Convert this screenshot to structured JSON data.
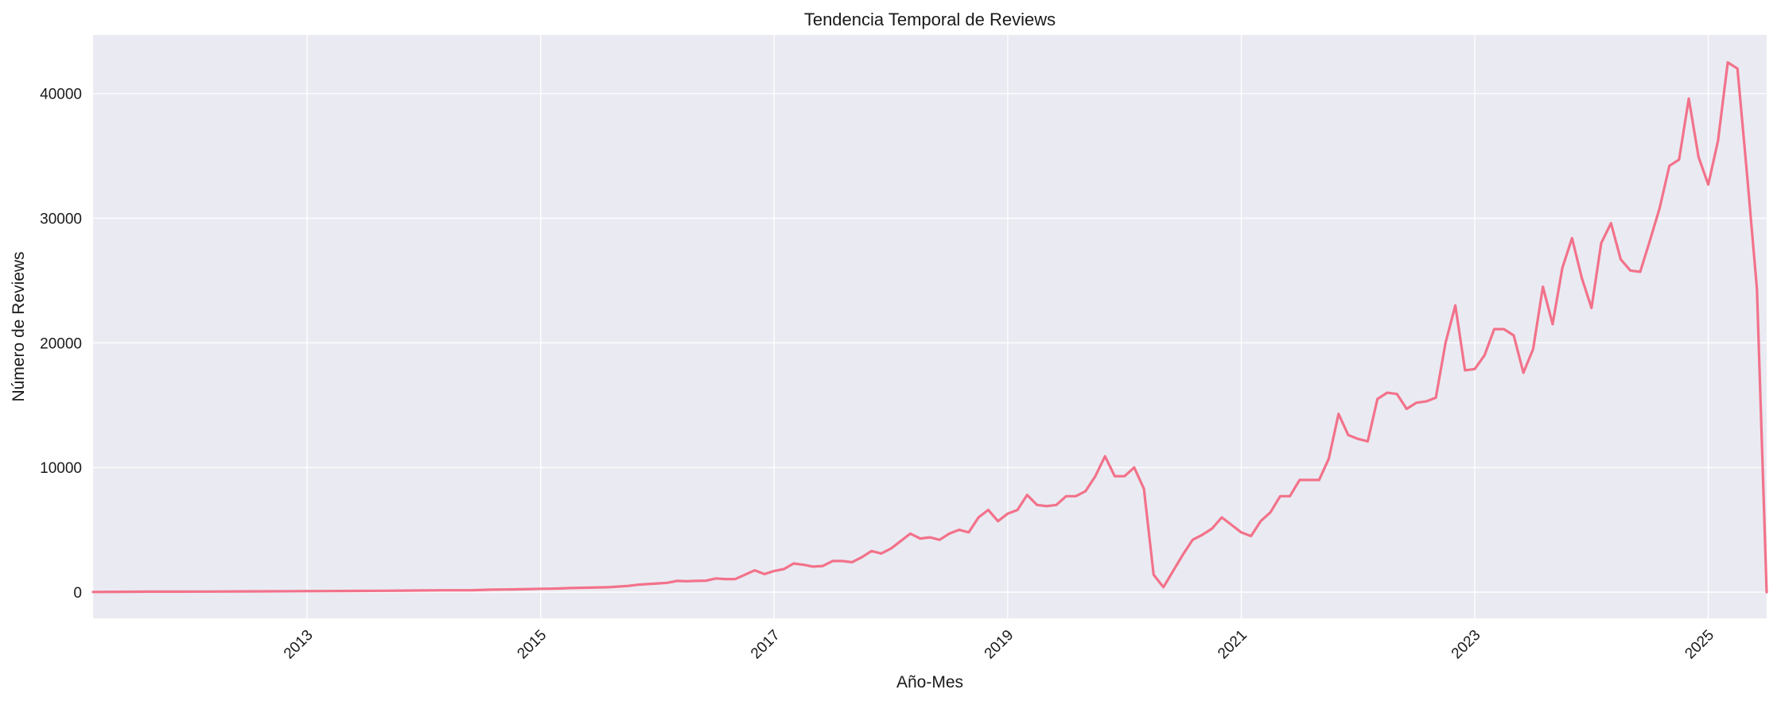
{
  "chart_data": {
    "type": "line",
    "title": "Tendencia Temporal de Reviews",
    "xlabel": "Año-Mes",
    "ylabel": "Número de Reviews",
    "x_range": [
      "2011-03",
      "2025-07"
    ],
    "ylim": [
      -2100,
      44700
    ],
    "grid": true,
    "line_color": "#f2728a",
    "background_color": "#eaeaf2",
    "x_ticks": [
      "2013",
      "2015",
      "2017",
      "2019",
      "2021",
      "2023",
      "2025"
    ],
    "y_ticks": [
      0,
      10000,
      20000,
      30000,
      40000
    ],
    "series": [
      {
        "x": [
          "2011-03",
          "2011-06",
          "2011-09",
          "2011-12",
          "2012-03",
          "2012-06",
          "2012-09",
          "2012-12",
          "2013-03",
          "2013-06",
          "2013-09",
          "2013-12",
          "2014-03",
          "2014-06",
          "2014-08",
          "2014-10",
          "2014-12",
          "2015-01",
          "2015-02",
          "2015-03",
          "2015-04",
          "2015-06",
          "2015-08",
          "2015-09",
          "2015-10",
          "2015-11",
          "2015-12",
          "2016-01",
          "2016-02",
          "2016-03",
          "2016-04",
          "2016-05",
          "2016-06",
          "2016-07",
          "2016-08",
          "2016-09",
          "2016-10",
          "2016-11",
          "2016-12",
          "2017-01",
          "2017-02",
          "2017-03",
          "2017-04",
          "2017-05",
          "2017-06",
          "2017-07",
          "2017-08",
          "2017-09",
          "2017-10",
          "2017-11",
          "2017-12",
          "2018-01",
          "2018-02",
          "2018-03",
          "2018-04",
          "2018-05",
          "2018-06",
          "2018-07",
          "2018-08",
          "2018-09",
          "2018-10",
          "2018-11",
          "2018-12",
          "2019-01",
          "2019-02",
          "2019-03",
          "2019-04",
          "2019-05",
          "2019-06",
          "2019-07",
          "2019-08",
          "2019-09",
          "2019-10",
          "2019-11",
          "2019-12",
          "2020-01",
          "2020-02",
          "2020-03",
          "2020-04",
          "2020-05",
          "2020-06",
          "2020-07",
          "2020-08",
          "2020-09",
          "2020-10",
          "2020-11",
          "2020-12",
          "2021-01",
          "2021-02",
          "2021-03",
          "2021-04",
          "2021-05",
          "2021-06",
          "2021-07",
          "2021-08",
          "2021-09",
          "2021-10",
          "2021-11",
          "2021-12",
          "2022-01",
          "2022-02",
          "2022-03",
          "2022-04",
          "2022-05",
          "2022-06",
          "2022-07",
          "2022-08",
          "2022-09",
          "2022-10",
          "2022-11",
          "2022-12",
          "2023-01",
          "2023-02",
          "2023-03",
          "2023-04",
          "2023-05",
          "2023-06",
          "2023-07",
          "2023-08",
          "2023-09",
          "2023-10",
          "2023-11",
          "2023-12",
          "2024-01",
          "2024-02",
          "2024-03",
          "2024-04",
          "2024-05",
          "2024-06",
          "2024-07",
          "2024-08",
          "2024-09",
          "2024-10",
          "2024-11",
          "2024-12",
          "2025-01",
          "2025-02",
          "2025-03",
          "2025-04",
          "2025-05",
          "2025-06",
          "2025-07"
        ],
        "y": [
          20,
          30,
          40,
          40,
          50,
          60,
          70,
          80,
          90,
          100,
          110,
          130,
          150,
          160,
          200,
          220,
          250,
          270,
          280,
          300,
          330,
          360,
          400,
          450,
          500,
          600,
          650,
          700,
          750,
          900,
          880,
          900,
          920,
          1100,
          1050,
          1050,
          1400,
          1750,
          1450,
          1700,
          1850,
          2300,
          2200,
          2050,
          2100,
          2500,
          2500,
          2400,
          2800,
          3300,
          3100,
          3500,
          4100,
          4700,
          4300,
          4400,
          4200,
          4700,
          5000,
          4800,
          6000,
          6600,
          5700,
          6300,
          6600,
          7800,
          7000,
          6900,
          7000,
          7700,
          7700,
          8100,
          9300,
          10900,
          9300,
          9300,
          10000,
          8300,
          1400,
          400,
          1700,
          3000,
          4200,
          4600,
          5100,
          6000,
          5400,
          4800,
          4500,
          5700,
          6400,
          7700,
          7700,
          9000,
          9000,
          9000,
          10700,
          14300,
          12600,
          12300,
          12100,
          15500,
          16000,
          15900,
          14700,
          15200,
          15300,
          15600,
          20000,
          23000,
          17800,
          17900,
          19000,
          21100,
          21100,
          20600,
          17600,
          19500,
          24500,
          21500,
          26000,
          28400,
          25200,
          22800,
          28000,
          29600,
          26700,
          25800,
          25700,
          28200,
          30800,
          34200,
          34700,
          39600,
          34900,
          32700,
          36200,
          42500,
          42000,
          33400,
          24300,
          0
        ]
      }
    ]
  }
}
